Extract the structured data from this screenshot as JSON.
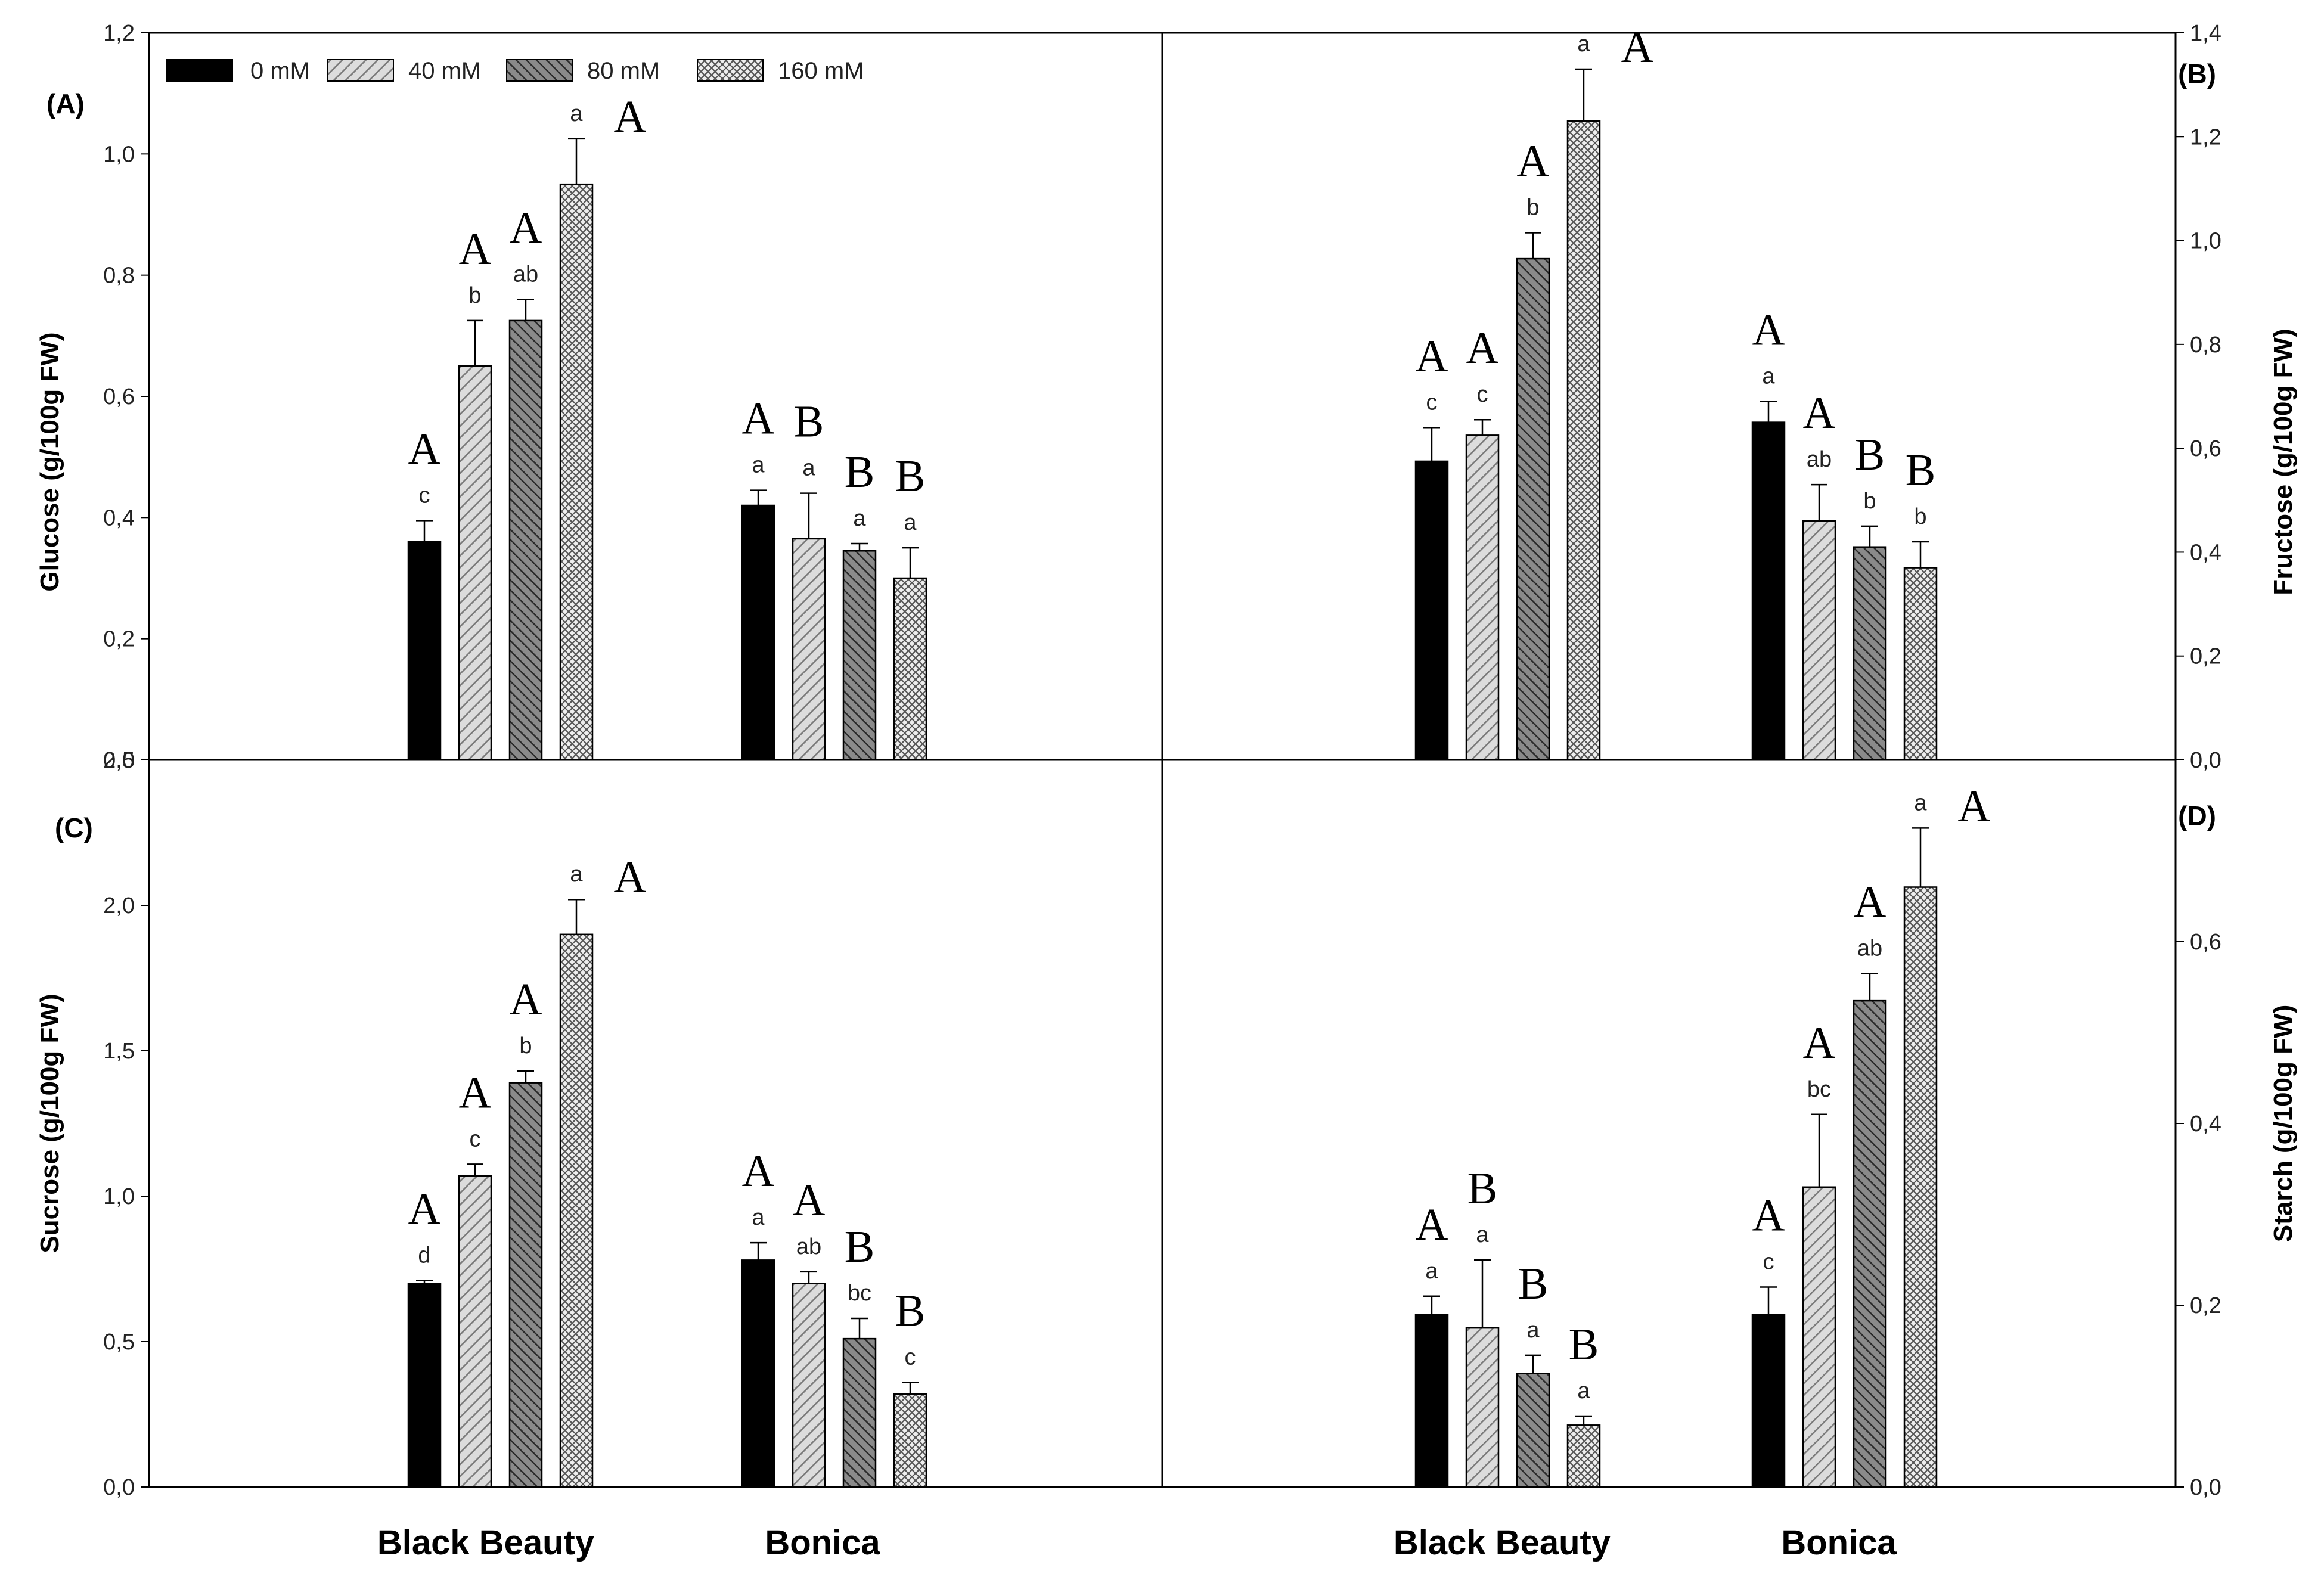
{
  "legend": {
    "items": [
      {
        "label": "0 mM",
        "pattern": "solid"
      },
      {
        "label": "40 mM",
        "pattern": "diag-light"
      },
      {
        "label": "80 mM",
        "pattern": "diag-dark"
      },
      {
        "label": "160 mM",
        "pattern": "cross"
      }
    ]
  },
  "colors": {
    "black": "#000000",
    "light_fill": "#d9d9d9",
    "dark_fill": "#6b6b6b",
    "cross_fill": "#e6e6e6"
  },
  "chart_data": [
    {
      "id": "A",
      "type": "bar",
      "panel_label": "(A)",
      "ylabel": "Glucose (g/100g FW)",
      "ylim": [
        0,
        1.2
      ],
      "yticks": [
        "0,0",
        "0,2",
        "0,4",
        "0,6",
        "0,8",
        "1,0",
        "1,2"
      ],
      "categories": [
        "Black Beauty",
        "Bonica"
      ],
      "series": [
        {
          "name": "0 mM",
          "values": [
            0.36,
            0.42
          ],
          "errors": [
            0.035,
            0.025
          ],
          "letters": [
            "c",
            "a"
          ],
          "groups": [
            "A",
            "A"
          ]
        },
        {
          "name": "40 mM",
          "values": [
            0.65,
            0.365
          ],
          "errors": [
            0.075,
            0.075
          ],
          "letters": [
            "b",
            "a"
          ],
          "groups": [
            "A",
            "B"
          ]
        },
        {
          "name": "80 mM",
          "values": [
            0.725,
            0.345
          ],
          "errors": [
            0.035,
            0.012
          ],
          "letters": [
            "ab",
            "a"
          ],
          "groups": [
            "A",
            "B"
          ]
        },
        {
          "name": "160 mM",
          "values": [
            0.95,
            0.3
          ],
          "errors": [
            0.075,
            0.05
          ],
          "letters": [
            "a",
            "a"
          ],
          "groups": [
            "A",
            "B"
          ]
        }
      ]
    },
    {
      "id": "B",
      "type": "bar",
      "panel_label": "(B)",
      "ylabel": "Fructose (g/100g FW)",
      "ylim": [
        0,
        1.4
      ],
      "yticks": [
        "0,0",
        "0,2",
        "0,4",
        "0,6",
        "0,8",
        "1,0",
        "1,2",
        "1,4"
      ],
      "categories": [
        "Black Beauty",
        "Bonica"
      ],
      "series": [
        {
          "name": "0 mM",
          "values": [
            0.575,
            0.65
          ],
          "errors": [
            0.065,
            0.04
          ],
          "letters": [
            "c",
            "a"
          ],
          "groups": [
            "A",
            "A"
          ]
        },
        {
          "name": "40 mM",
          "values": [
            0.625,
            0.46
          ],
          "errors": [
            0.03,
            0.07
          ],
          "letters": [
            "c",
            "ab"
          ],
          "groups": [
            "A",
            "A"
          ]
        },
        {
          "name": "80 mM",
          "values": [
            0.965,
            0.41
          ],
          "errors": [
            0.05,
            0.04
          ],
          "letters": [
            "b",
            "b"
          ],
          "groups": [
            "A",
            "B"
          ]
        },
        {
          "name": "160 mM",
          "values": [
            1.23,
            0.37
          ],
          "errors": [
            0.1,
            0.05
          ],
          "letters": [
            "a",
            "b"
          ],
          "groups": [
            "A",
            "B"
          ]
        }
      ]
    },
    {
      "id": "C",
      "type": "bar",
      "panel_label": "(C)",
      "ylabel": "Sucrose (g/100g FW)",
      "ylim": [
        0,
        2.5
      ],
      "yticks": [
        "0,0",
        "0,5",
        "1,0",
        "1,5",
        "2,0",
        "2,5"
      ],
      "categories": [
        "Black Beauty",
        "Bonica"
      ],
      "series": [
        {
          "name": "0 mM",
          "values": [
            0.7,
            0.78
          ],
          "errors": [
            0.01,
            0.06
          ],
          "letters": [
            "d",
            "a"
          ],
          "groups": [
            "A",
            "A"
          ]
        },
        {
          "name": "40 mM",
          "values": [
            1.07,
            0.7
          ],
          "errors": [
            0.04,
            0.04
          ],
          "letters": [
            "c",
            "ab"
          ],
          "groups": [
            "A",
            "A"
          ]
        },
        {
          "name": "80 mM",
          "values": [
            1.39,
            0.51
          ],
          "errors": [
            0.04,
            0.07
          ],
          "letters": [
            "b",
            "bc"
          ],
          "groups": [
            "A",
            "B"
          ]
        },
        {
          "name": "160 mM",
          "values": [
            1.9,
            0.32
          ],
          "errors": [
            0.12,
            0.04
          ],
          "letters": [
            "a",
            "c"
          ],
          "groups": [
            "A",
            "B"
          ]
        }
      ]
    },
    {
      "id": "D",
      "type": "bar",
      "panel_label": "(D)",
      "ylabel": "Starch (g/100g FW)",
      "ylim": [
        0,
        0.8
      ],
      "yticks": [
        "0,0",
        "0,2",
        "0,4",
        "0,6"
      ],
      "categories": [
        "Black Beauty",
        "Bonica"
      ],
      "series": [
        {
          "name": "0 mM",
          "values": [
            0.19,
            0.19
          ],
          "errors": [
            0.02,
            0.03
          ],
          "letters": [
            "a",
            "c"
          ],
          "groups": [
            "A",
            "A"
          ]
        },
        {
          "name": "40 mM",
          "values": [
            0.175,
            0.33
          ],
          "errors": [
            0.075,
            0.08
          ],
          "letters": [
            "a",
            "bc"
          ],
          "groups": [
            "B",
            "A"
          ]
        },
        {
          "name": "80 mM",
          "values": [
            0.125,
            0.535
          ],
          "errors": [
            0.02,
            0.03
          ],
          "letters": [
            "a",
            "ab"
          ],
          "groups": [
            "B",
            "A"
          ]
        },
        {
          "name": "160 mM",
          "values": [
            0.068,
            0.66
          ],
          "errors": [
            0.01,
            0.065
          ],
          "letters": [
            "a",
            "a"
          ],
          "groups": [
            "B",
            "A"
          ]
        }
      ]
    }
  ]
}
